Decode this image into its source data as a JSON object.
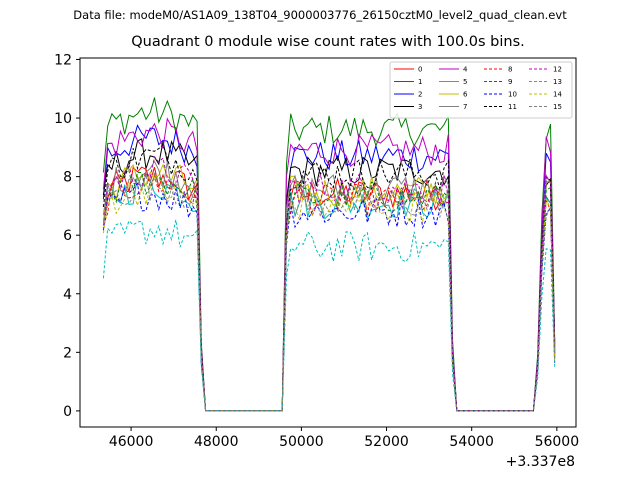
{
  "figure": {
    "suptitle": "Data file: modeM0/AS1A09_138T04_9000003776_26150cztM0_level2_quad_clean.evt",
    "title": "Quadrant 0 module wise count rates with 100.0s bins.",
    "offset_label": "+3.337e8"
  },
  "chart_data": {
    "type": "line",
    "title": "Quadrant 0 module wise count rates with 100.0s bins.",
    "xlabel": "",
    "ylabel": "",
    "x_offset": 333700000,
    "xlim": [
      44800,
      56450
    ],
    "ylim": [
      -0.55,
      12.05
    ],
    "xticks": [
      46000,
      48000,
      50000,
      52000,
      54000,
      56000
    ],
    "xtick_labels": [
      "46000",
      "48000",
      "50000",
      "52000",
      "54000",
      "56000"
    ],
    "yticks": [
      0,
      2,
      4,
      6,
      8,
      10,
      12
    ],
    "ytick_labels": [
      "0",
      "2",
      "4",
      "6",
      "8",
      "10",
      "12"
    ],
    "grid": false,
    "legend_position": "top-right",
    "segments": [
      {
        "start": 45350,
        "end": 47650
      },
      {
        "start": 49650,
        "end": 53550
      },
      {
        "start": 55550,
        "end": 56000
      }
    ],
    "series": [
      {
        "name": "0",
        "color": "#ff0000",
        "dash": "solid",
        "level": 7.4
      },
      {
        "name": "1",
        "color": "#008000",
        "dash": "solid",
        "level": 9.6
      },
      {
        "name": "2",
        "color": "#0000ff",
        "dash": "solid",
        "level": 8.7
      },
      {
        "name": "3",
        "color": "#000000",
        "dash": "solid",
        "level": 8.2
      },
      {
        "name": "4",
        "color": "#bf00bf",
        "dash": "solid",
        "level": 8.9
      },
      {
        "name": "5",
        "color": "#00bfbf",
        "dash": "solid",
        "level": 7.1
      },
      {
        "name": "6",
        "color": "#bfbf00",
        "dash": "solid",
        "level": 7.5
      },
      {
        "name": "7",
        "color": "#808080",
        "dash": "solid",
        "level": 7.6
      },
      {
        "name": "8",
        "color": "#ff0000",
        "dash": "dashed",
        "level": 7.2
      },
      {
        "name": "9",
        "color": "#008000",
        "dash": "dashed",
        "level": 7.3
      },
      {
        "name": "10",
        "color": "#0000ff",
        "dash": "dashed",
        "level": 6.8
      },
      {
        "name": "11",
        "color": "#000000",
        "dash": "dashed",
        "level": 8.1
      },
      {
        "name": "12",
        "color": "#bf00bf",
        "dash": "dashed",
        "level": 7.6
      },
      {
        "name": "13",
        "color": "#00bfbf",
        "dash": "dashed",
        "level": 5.6
      },
      {
        "name": "14",
        "color": "#bfbf00",
        "dash": "dashed",
        "level": 7.0
      },
      {
        "name": "15",
        "color": "#808080",
        "dash": "dashed",
        "level": 7.1
      }
    ]
  }
}
